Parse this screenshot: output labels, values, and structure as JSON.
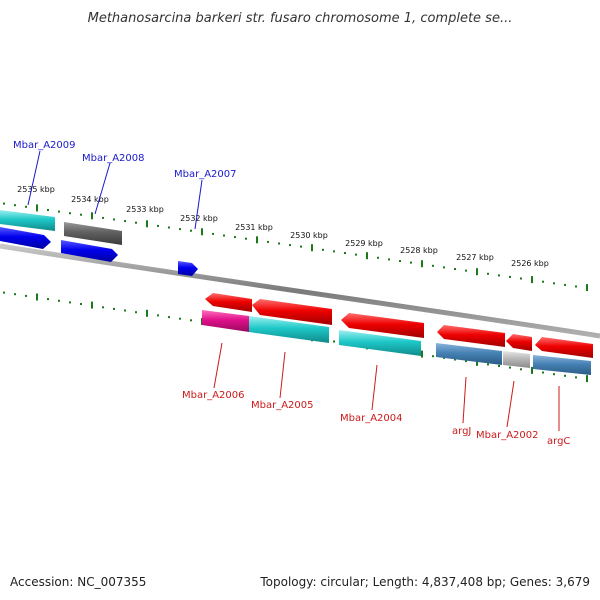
{
  "title": "Methanosarcina barkeri str. fusaro chromosome 1, complete se...",
  "footer": {
    "accession": "Accession: NC_007355",
    "summary": "Topology: circular; Length: 4,837,408 bp; Genes: 3,679"
  },
  "ruler_ticks": [
    "2535 kbp",
    "2534 kbp",
    "2533 kbp",
    "2532 kbp",
    "2531 kbp",
    "2530 kbp",
    "2529 kbp",
    "2528 kbp",
    "2527 kbp",
    "2526 kbp"
  ],
  "colors": {
    "forward_label": "#1a1acc",
    "reverse_label": "#cc1a1a",
    "ruler": "#1a7a1a",
    "backbone": "#808080",
    "gene_blue": "#0000ee",
    "gene_red": "#ee0000",
    "gene_cyan": "#1ec8c8",
    "gene_gray": "#606060",
    "gene_steelblue": "#4682b4",
    "gene_magenta": "#e0108a",
    "gene_lightgray": "#b8b8b8"
  },
  "forward_genes": [
    "Mbar_A2009",
    "Mbar_A2008",
    "Mbar_A2007"
  ],
  "reverse_genes": [
    "Mbar_A2006",
    "Mbar_A2005",
    "Mbar_A2004",
    "argJ",
    "Mbar_A2002",
    "argC"
  ]
}
